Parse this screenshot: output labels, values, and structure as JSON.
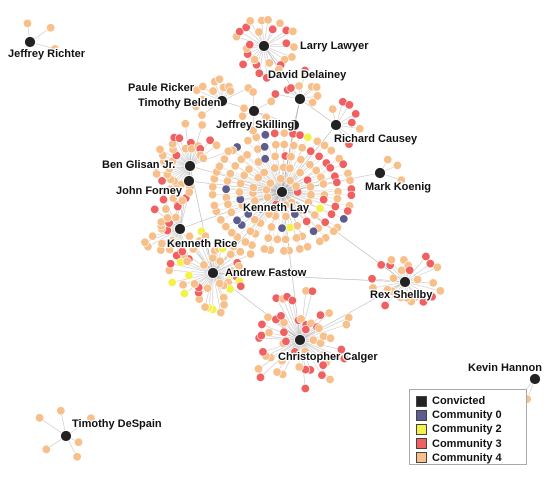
{
  "legend": {
    "items": [
      {
        "label": "Convicted",
        "color": "#222222"
      },
      {
        "label": "Community 0",
        "color": "#5e5c8f"
      },
      {
        "label": "Community 2",
        "color": "#f2f24a"
      },
      {
        "label": "Community 3",
        "color": "#f06060"
      },
      {
        "label": "Community 4",
        "color": "#f7c08b"
      }
    ]
  },
  "hubs": [
    {
      "label": "Jeffrey Richter"
    },
    {
      "label": "Larry Lawyer"
    },
    {
      "label": "David Delainey"
    },
    {
      "label": "Paule Ricker"
    },
    {
      "label": "Timothy Belden"
    },
    {
      "label": "Jeffrey Skilling"
    },
    {
      "label": "Richard Causey"
    },
    {
      "label": "Ben Glisan Jr."
    },
    {
      "label": "John Forney"
    },
    {
      "label": "Mark Koenig"
    },
    {
      "label": "Kenneth Lay"
    },
    {
      "label": "Kenneth Rice"
    },
    {
      "label": "Andrew Fastow"
    },
    {
      "label": "Rex Shellby"
    },
    {
      "label": "Christopher Calger"
    },
    {
      "label": "Kevin Hannon"
    },
    {
      "label": "Timothy DeSpain"
    }
  ]
}
